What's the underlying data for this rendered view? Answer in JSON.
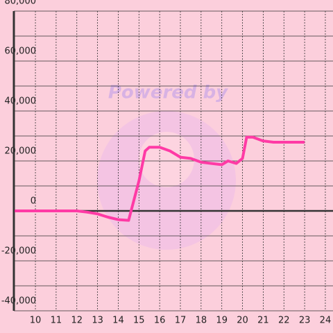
{
  "chart_data": {
    "type": "line",
    "watermark": "Powered by",
    "x": [
      9,
      12,
      12.5,
      13,
      13.5,
      14,
      14.5,
      15,
      15.3,
      15.5,
      16,
      16.5,
      17,
      17.5,
      18,
      18.5,
      19,
      19.3,
      19.7,
      20,
      20.2,
      20.5,
      21,
      21.5,
      22,
      23
    ],
    "values": [
      0,
      0,
      -500,
      -1200,
      -2500,
      -3500,
      -3800,
      12000,
      24000,
      25500,
      25500,
      24000,
      21500,
      21000,
      19500,
      19000,
      18500,
      20000,
      19000,
      21000,
      29500,
      29500,
      28000,
      27500,
      27500,
      27500
    ],
    "color": "#ff3aa5",
    "xlim": [
      8.96,
      24.37
    ],
    "ylim": [
      -40000,
      80000
    ],
    "xticks": [
      10,
      11,
      12,
      13,
      14,
      15,
      16,
      17,
      18,
      19,
      20,
      21,
      22,
      23,
      24
    ],
    "yticks": [
      {
        "value": -40000,
        "label": "-40,000"
      },
      {
        "value": -20000,
        "label": "-20,000"
      },
      0,
      {
        "value": 20000,
        "label": "20,000"
      },
      {
        "value": 40000,
        "label": "40,000"
      },
      {
        "value": 60000,
        "label": "60,000"
      },
      {
        "value": 80000,
        "label": "80,000"
      }
    ],
    "yminorticks": [
      -30000,
      -10000,
      10000,
      30000,
      50000,
      70000
    ],
    "grid": true
  }
}
